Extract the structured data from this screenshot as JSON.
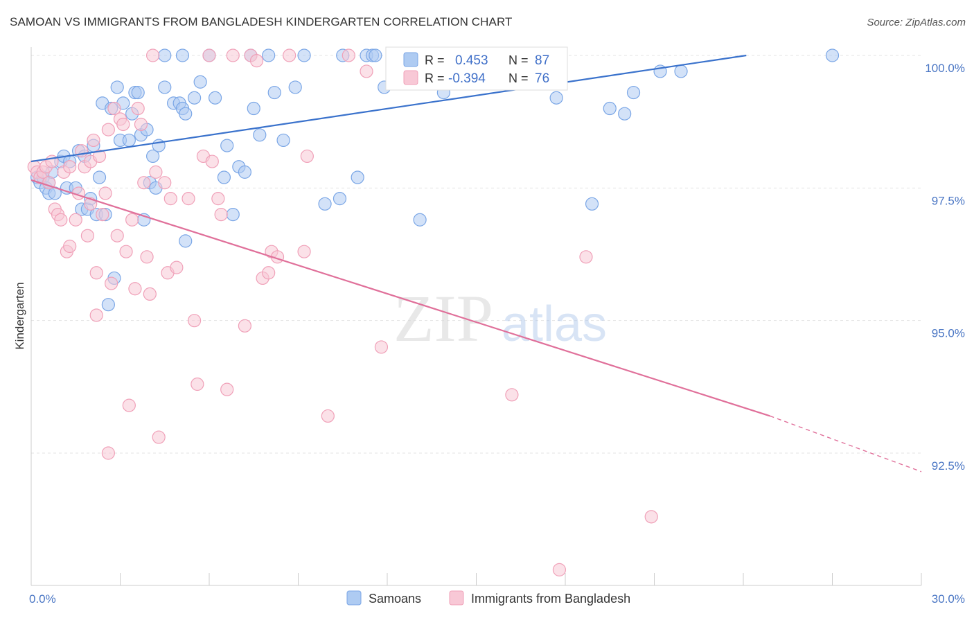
{
  "header": {
    "title": "SAMOAN VS IMMIGRANTS FROM BANGLADESH KINDERGARTEN CORRELATION CHART",
    "source": "Source: ZipAtlas.com"
  },
  "watermark": {
    "zip": "ZIP",
    "atlas": "atlas"
  },
  "chart_data": {
    "type": "scatter",
    "ylabel": "Kindergarten",
    "xlim": [
      0,
      30
    ],
    "ylim": [
      90.0,
      100.4
    ],
    "x_tick_labels": [
      {
        "value": 0,
        "label": "0.0%"
      },
      {
        "value": 30,
        "label": "30.0%"
      }
    ],
    "y_tick_labels": [
      {
        "value": 100.0,
        "label": "100.0%"
      },
      {
        "value": 97.5,
        "label": "97.5%"
      },
      {
        "value": 95.0,
        "label": "95.0%"
      },
      {
        "value": 92.5,
        "label": "92.5%"
      }
    ],
    "grid": "horizontal dashed",
    "legend_top": {
      "r_label": "R =",
      "n_label": "N =",
      "entries": [
        {
          "r": "0.453",
          "n": "87"
        },
        {
          "r": "-0.394",
          "n": "76"
        }
      ]
    },
    "series": [
      {
        "name": "Samoans",
        "color": "#7aa6e6",
        "fill": "#aecbf2",
        "trend_color": "#3a72cc",
        "trend": {
          "x0": 0,
          "y0": 98.0,
          "x1": 24.1,
          "y1": 100.0,
          "dashed_to": null
        },
        "points": [
          [
            0.2,
            97.7
          ],
          [
            0.3,
            97.6
          ],
          [
            0.4,
            97.7
          ],
          [
            0.5,
            97.5
          ],
          [
            0.6,
            97.4
          ],
          [
            0.6,
            97.6
          ],
          [
            0.7,
            97.8
          ],
          [
            0.8,
            97.4
          ],
          [
            1.0,
            98.0
          ],
          [
            1.1,
            98.1
          ],
          [
            1.2,
            97.5
          ],
          [
            1.3,
            98.0
          ],
          [
            1.5,
            97.5
          ],
          [
            1.6,
            98.2
          ],
          [
            1.7,
            97.1
          ],
          [
            1.8,
            98.1
          ],
          [
            1.9,
            97.1
          ],
          [
            2.0,
            97.3
          ],
          [
            2.1,
            98.3
          ],
          [
            2.2,
            97.0
          ],
          [
            2.3,
            97.7
          ],
          [
            2.4,
            99.1
          ],
          [
            2.5,
            97.0
          ],
          [
            2.6,
            95.3
          ],
          [
            2.7,
            99.0
          ],
          [
            2.8,
            95.8
          ],
          [
            2.9,
            99.4
          ],
          [
            3.0,
            98.4
          ],
          [
            3.1,
            99.1
          ],
          [
            3.3,
            98.4
          ],
          [
            3.4,
            98.9
          ],
          [
            3.5,
            99.3
          ],
          [
            3.6,
            99.3
          ],
          [
            3.7,
            98.5
          ],
          [
            3.8,
            96.9
          ],
          [
            3.9,
            98.6
          ],
          [
            4.0,
            97.6
          ],
          [
            4.1,
            98.1
          ],
          [
            4.2,
            97.5
          ],
          [
            4.3,
            98.3
          ],
          [
            4.5,
            99.4
          ],
          [
            4.5,
            100.0
          ],
          [
            4.8,
            99.1
          ],
          [
            5.0,
            99.1
          ],
          [
            5.1,
            99.0
          ],
          [
            5.1,
            100.0
          ],
          [
            5.2,
            98.9
          ],
          [
            5.2,
            96.5
          ],
          [
            5.5,
            99.2
          ],
          [
            5.7,
            99.5
          ],
          [
            6.0,
            100.0
          ],
          [
            6.2,
            99.2
          ],
          [
            6.5,
            97.7
          ],
          [
            6.6,
            98.3
          ],
          [
            6.8,
            97.0
          ],
          [
            7.0,
            97.9
          ],
          [
            7.2,
            97.8
          ],
          [
            7.4,
            100.0
          ],
          [
            7.5,
            99.0
          ],
          [
            7.7,
            98.5
          ],
          [
            8.0,
            100.0
          ],
          [
            8.2,
            99.3
          ],
          [
            8.5,
            98.4
          ],
          [
            8.9,
            99.4
          ],
          [
            9.2,
            100.0
          ],
          [
            9.9,
            97.2
          ],
          [
            10.4,
            97.3
          ],
          [
            10.5,
            100.0
          ],
          [
            11.0,
            97.7
          ],
          [
            11.3,
            100.0
          ],
          [
            11.5,
            100.0
          ],
          [
            11.6,
            100.0
          ],
          [
            11.9,
            99.4
          ],
          [
            12.3,
            100.0
          ],
          [
            12.6,
            100.0
          ],
          [
            13.0,
            100.0
          ],
          [
            13.1,
            96.9
          ],
          [
            13.9,
            99.3
          ],
          [
            14.2,
            100.0
          ],
          [
            14.5,
            100.0
          ],
          [
            15.6,
            100.0
          ],
          [
            17.7,
            99.2
          ],
          [
            18.9,
            97.2
          ],
          [
            19.5,
            99.0
          ],
          [
            20.0,
            98.9
          ],
          [
            20.3,
            99.3
          ],
          [
            21.2,
            99.7
          ],
          [
            21.9,
            99.7
          ],
          [
            27.0,
            100.0
          ]
        ]
      },
      {
        "name": "Immigrants from Bangladesh",
        "color": "#f0a0b8",
        "fill": "#f8c8d6",
        "trend_color": "#e0709a",
        "trend": {
          "x0": 0,
          "y0": 97.65,
          "x1": 24.9,
          "y1": 93.2,
          "dashed_to": {
            "x": 30,
            "y": 92.15
          }
        },
        "points": [
          [
            0.1,
            97.9
          ],
          [
            0.2,
            97.8
          ],
          [
            0.3,
            97.7
          ],
          [
            0.4,
            97.8
          ],
          [
            0.5,
            97.9
          ],
          [
            0.6,
            97.6
          ],
          [
            0.7,
            98.0
          ],
          [
            0.8,
            97.1
          ],
          [
            0.9,
            97.0
          ],
          [
            1.0,
            96.9
          ],
          [
            1.1,
            97.8
          ],
          [
            1.2,
            96.3
          ],
          [
            1.3,
            97.9
          ],
          [
            1.3,
            96.4
          ],
          [
            1.5,
            96.9
          ],
          [
            1.6,
            97.4
          ],
          [
            1.7,
            98.2
          ],
          [
            1.8,
            97.9
          ],
          [
            1.9,
            96.6
          ],
          [
            2.0,
            98.0
          ],
          [
            2.0,
            97.2
          ],
          [
            2.1,
            98.4
          ],
          [
            2.2,
            95.1
          ],
          [
            2.2,
            95.9
          ],
          [
            2.3,
            98.1
          ],
          [
            2.4,
            97.0
          ],
          [
            2.5,
            97.4
          ],
          [
            2.6,
            92.5
          ],
          [
            2.6,
            98.6
          ],
          [
            2.7,
            95.7
          ],
          [
            2.8,
            99.0
          ],
          [
            2.9,
            96.6
          ],
          [
            3.0,
            98.8
          ],
          [
            3.1,
            98.7
          ],
          [
            3.2,
            96.3
          ],
          [
            3.3,
            93.4
          ],
          [
            3.4,
            96.9
          ],
          [
            3.5,
            95.6
          ],
          [
            3.6,
            99.0
          ],
          [
            3.7,
            98.7
          ],
          [
            3.8,
            97.6
          ],
          [
            3.9,
            96.2
          ],
          [
            4.0,
            95.5
          ],
          [
            4.1,
            100.0
          ],
          [
            4.2,
            97.8
          ],
          [
            4.3,
            92.8
          ],
          [
            4.5,
            97.6
          ],
          [
            4.6,
            95.9
          ],
          [
            4.7,
            97.3
          ],
          [
            4.9,
            96.0
          ],
          [
            5.3,
            97.3
          ],
          [
            5.5,
            95.0
          ],
          [
            5.6,
            93.8
          ],
          [
            5.8,
            98.1
          ],
          [
            6.0,
            100.0
          ],
          [
            6.1,
            98.0
          ],
          [
            6.3,
            97.3
          ],
          [
            6.4,
            97.0
          ],
          [
            6.6,
            93.7
          ],
          [
            6.8,
            100.0
          ],
          [
            7.2,
            94.9
          ],
          [
            7.4,
            100.0
          ],
          [
            7.6,
            99.9
          ],
          [
            7.8,
            95.8
          ],
          [
            8.0,
            95.9
          ],
          [
            8.1,
            96.3
          ],
          [
            8.3,
            96.2
          ],
          [
            8.7,
            100.0
          ],
          [
            9.2,
            96.3
          ],
          [
            9.3,
            98.1
          ],
          [
            10.0,
            93.2
          ],
          [
            10.7,
            100.0
          ],
          [
            11.3,
            99.7
          ],
          [
            11.8,
            94.5
          ],
          [
            16.2,
            93.6
          ],
          [
            18.7,
            96.2
          ],
          [
            20.9,
            91.3
          ],
          [
            17.8,
            90.3
          ]
        ]
      }
    ]
  }
}
